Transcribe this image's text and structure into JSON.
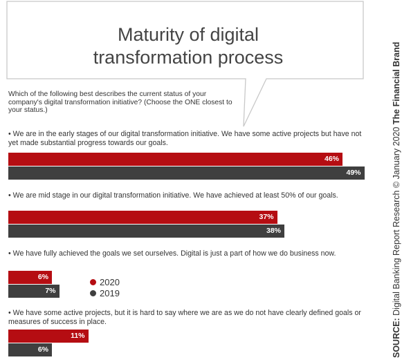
{
  "colors": {
    "y2020": "#b50d12",
    "y2019": "#3f3f3f"
  },
  "title_lines": [
    "Maturity of digital",
    "transformation process"
  ],
  "question": "Which of the following best describes the current status of your company's digital transformation initiative? (Choose the ONE closest to your status.)",
  "legend": {
    "y2020": "2020",
    "y2019": "2019"
  },
  "source": {
    "bold_prefix": "SOURCE:",
    "text": "Digital Banking Report Research © January 2020",
    "brand": "The Financial Brand"
  },
  "chart_data": {
    "type": "bar",
    "orientation": "horizontal",
    "categories": [
      "• We are in the early stages of our digital transformation initiative. We have some active projects but have not yet made substantial progress towards our goals.",
      "• We are mid stage in our digital transformation initiative. We have achieved at least 50% of our goals.",
      "• We have fully achieved the goals we set ourselves. Digital is just a part of how we do business now.",
      "• We have some active projects, but it is hard to say where we are as we do not have clearly defined goals or measures of success in place."
    ],
    "series": [
      {
        "name": "2020",
        "values": [
          46,
          37,
          6,
          11
        ]
      },
      {
        "name": "2019",
        "values": [
          49,
          38,
          7,
          6
        ]
      }
    ],
    "value_suffix": "%",
    "xlim": [
      0,
      100
    ]
  }
}
